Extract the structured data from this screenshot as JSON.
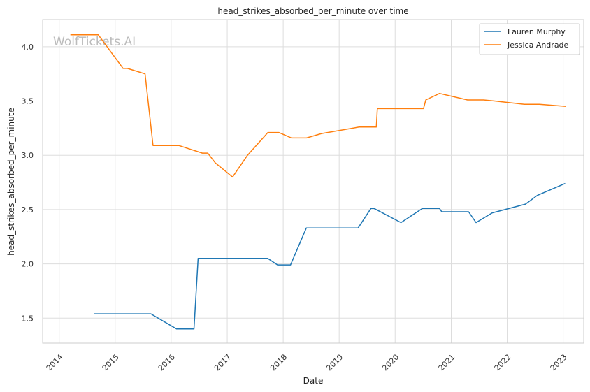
{
  "chart_data": {
    "type": "line",
    "title": "head_strikes_absorbed_per_minute over time",
    "xlabel": "Date",
    "ylabel": "head_strikes_absorbed_per_minute",
    "watermark": "WolfTickets.AI",
    "xlim": [
      "2013-09-15",
      "2023-05-15"
    ],
    "ylim": [
      1.27,
      4.25
    ],
    "x_ticks": [
      "2014",
      "2015",
      "2016",
      "2017",
      "2018",
      "2019",
      "2020",
      "2021",
      "2022",
      "2023"
    ],
    "y_ticks": [
      1.5,
      2.0,
      2.5,
      3.0,
      3.5,
      4.0
    ],
    "y_tick_labels": [
      "1.5",
      "2.0",
      "2.5",
      "3.0",
      "3.5",
      "4.0"
    ],
    "grid": true,
    "legend_position": "top-right",
    "series": [
      {
        "name": "Lauren Murphy",
        "color": "#1f77b4",
        "points": [
          [
            "2014-08-16",
            1.54
          ],
          [
            "2015-08-22",
            1.54
          ],
          [
            "2016-02-06",
            1.4
          ],
          [
            "2016-05-29",
            1.4
          ],
          [
            "2016-06-25",
            2.05
          ],
          [
            "2017-09-22",
            2.05
          ],
          [
            "2017-11-25",
            1.99
          ],
          [
            "2018-02-18",
            1.99
          ],
          [
            "2018-06-01",
            2.33
          ],
          [
            "2019-05-04",
            2.33
          ],
          [
            "2019-07-27",
            2.51
          ],
          [
            "2019-08-17",
            2.51
          ],
          [
            "2020-02-08",
            2.38
          ],
          [
            "2020-06-27",
            2.51
          ],
          [
            "2020-10-17",
            2.51
          ],
          [
            "2020-10-31",
            2.48
          ],
          [
            "2021-04-24",
            2.48
          ],
          [
            "2021-06-12",
            2.38
          ],
          [
            "2021-09-25",
            2.47
          ],
          [
            "2022-04-30",
            2.55
          ],
          [
            "2022-07-16",
            2.63
          ],
          [
            "2023-01-14",
            2.74
          ]
        ]
      },
      {
        "name": "Jessica Andrade",
        "color": "#ff7f0e",
        "points": [
          [
            "2014-03-15",
            4.11
          ],
          [
            "2014-09-13",
            4.11
          ],
          [
            "2015-02-22",
            3.8
          ],
          [
            "2015-03-22",
            3.8
          ],
          [
            "2015-07-15",
            3.75
          ],
          [
            "2015-09-05",
            3.09
          ],
          [
            "2016-02-20",
            3.09
          ],
          [
            "2016-07-23",
            3.02
          ],
          [
            "2016-08-27",
            3.02
          ],
          [
            "2016-10-15",
            2.93
          ],
          [
            "2017-02-05",
            2.8
          ],
          [
            "2017-05-13",
            3.0
          ],
          [
            "2017-09-23",
            3.21
          ],
          [
            "2017-12-03",
            3.21
          ],
          [
            "2018-02-24",
            3.16
          ],
          [
            "2018-06-02",
            3.16
          ],
          [
            "2018-09-08",
            3.2
          ],
          [
            "2019-05-11",
            3.26
          ],
          [
            "2019-08-31",
            3.26
          ],
          [
            "2019-09-07",
            3.43
          ],
          [
            "2020-07-04",
            3.43
          ],
          [
            "2020-07-19",
            3.51
          ],
          [
            "2020-10-17",
            3.57
          ],
          [
            "2021-04-17",
            3.51
          ],
          [
            "2021-07-31",
            3.51
          ],
          [
            "2021-10-10",
            3.5
          ],
          [
            "2022-04-23",
            3.47
          ],
          [
            "2022-07-30",
            3.47
          ],
          [
            "2023-01-21",
            3.45
          ]
        ]
      }
    ]
  }
}
